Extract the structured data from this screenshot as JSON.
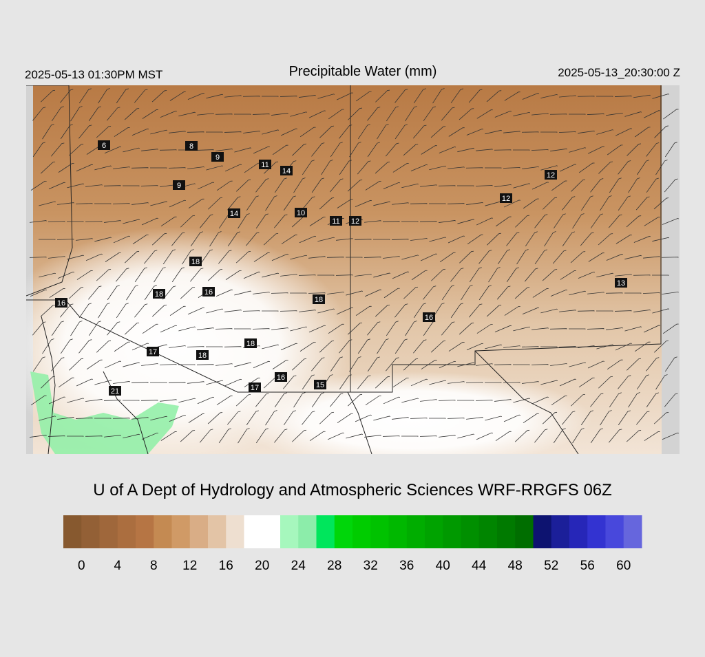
{
  "header": {
    "left": "2025-05-13 01:30PM MST",
    "title": "Precipitable Water (mm)",
    "right": "2025-05-13_20:30:00 Z"
  },
  "map": {
    "station_values": [
      6,
      8,
      9,
      11,
      14,
      9,
      12,
      12,
      14,
      10,
      11,
      12,
      18,
      13,
      16,
      18,
      16,
      18,
      16,
      17,
      18,
      18,
      16,
      17,
      15,
      21
    ]
  },
  "credit": "U of A Dept of Hydrology and Atmospheric Sciences WRF-RRGFS 06Z",
  "colorbar": {
    "lim": [
      -2,
      62
    ],
    "ticks": [
      0,
      4,
      8,
      12,
      16,
      20,
      24,
      28,
      32,
      36,
      40,
      44,
      48,
      52,
      56,
      60
    ],
    "colors": [
      "#87592f",
      "#936036",
      "#9f673b",
      "#ab6e3f",
      "#b67544",
      "#c48a52",
      "#d09a66",
      "#d9ad86",
      "#e3c4a6",
      "#eedfd0",
      "#ffffff",
      "#ffffff",
      "#a6f7bd",
      "#8cedaa",
      "#00e65c",
      "#00d60a",
      "#00cc00",
      "#00c200",
      "#00b800",
      "#00ad00",
      "#00a300",
      "#009900",
      "#008f00",
      "#008500",
      "#007a00",
      "#006e00",
      "#0d1370",
      "#1b1f99",
      "#2626b8",
      "#3333d1",
      "#4848dc",
      "#6666dd"
    ]
  }
}
